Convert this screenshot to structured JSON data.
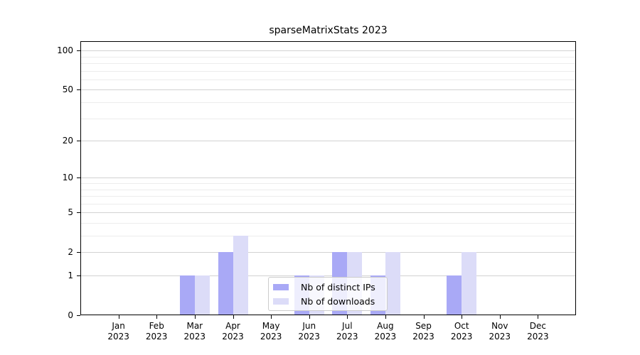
{
  "chart_data": {
    "type": "bar",
    "title": "sparseMatrixStats 2023",
    "categories": [
      "Jan",
      "Feb",
      "Mar",
      "Apr",
      "May",
      "Jun",
      "Jul",
      "Aug",
      "Sep",
      "Oct",
      "Nov",
      "Dec"
    ],
    "category_year_label": "2023",
    "series": [
      {
        "name": "Nb of distinct IPs",
        "color": "#a9a9f6",
        "values": [
          0,
          0,
          1,
          2,
          0,
          1,
          2,
          1,
          0,
          1,
          0,
          0
        ]
      },
      {
        "name": "Nb of downloads",
        "color": "#dcdcf8",
        "values": [
          0,
          0,
          1,
          3,
          0,
          1,
          2,
          2,
          0,
          2,
          0,
          0
        ]
      }
    ],
    "y_axis": {
      "scale": "log1p",
      "major_ticks": [
        0,
        1,
        2,
        5,
        10,
        20,
        50,
        100
      ],
      "minor_gridlines": [
        3,
        4,
        6,
        7,
        8,
        9,
        30,
        40,
        60,
        70,
        80,
        90
      ],
      "axis_top_value": 118
    },
    "x_axis": {
      "tick_count": 12
    },
    "legend": {
      "position": "bottom-center",
      "entries": [
        "Nb of distinct IPs",
        "Nb of downloads"
      ]
    },
    "grid": "on"
  },
  "colors": {
    "bar_distinct_ips": "#a9a9f6",
    "bar_downloads": "#dcdcf8",
    "major_grid": "#d2d2d2",
    "minor_grid": "#ececec",
    "axis_frame": "#000000",
    "legend_border": "#cccccc",
    "background": "#ffffff"
  }
}
